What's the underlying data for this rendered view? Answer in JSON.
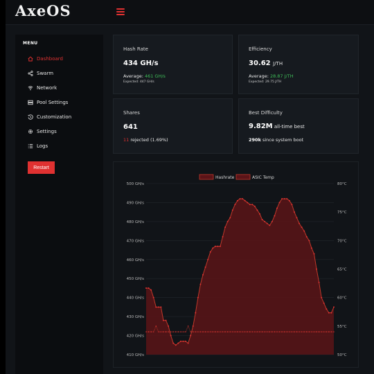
{
  "app": {
    "logo": "AxeOS"
  },
  "sidebar": {
    "menu_title": "MENU",
    "items": [
      {
        "label": "Dashboard",
        "icon": "home-icon",
        "active": true
      },
      {
        "label": "Swarm",
        "icon": "share-icon",
        "active": false
      },
      {
        "label": "Network",
        "icon": "wifi-icon",
        "active": false
      },
      {
        "label": "Pool Settings",
        "icon": "server-icon",
        "active": false
      },
      {
        "label": "Customization",
        "icon": "history-icon",
        "active": false
      },
      {
        "label": "Settings",
        "icon": "gear-icon",
        "active": false
      },
      {
        "label": "Logs",
        "icon": "list-icon",
        "active": false
      }
    ],
    "restart_label": "Restart"
  },
  "cards": {
    "hashrate": {
      "title": "Hash Rate",
      "value": "434 GH/s",
      "average_label": "Average: ",
      "average_value": "461 GH/s",
      "expected": "Expected: 447 GH/s"
    },
    "efficiency": {
      "title": "Efficiency",
      "value": "30.62",
      "unit": "J/TH",
      "average_label": "Average: ",
      "average_value": "28.87 J/TH",
      "expected": "Expected: 29.75 J/TH"
    },
    "shares": {
      "title": "Shares",
      "value": "641",
      "rejected_count": "11",
      "rejected_text": " rejected (1.69%)"
    },
    "best_difficulty": {
      "title": "Best Difficulty",
      "value": "9.82M",
      "value_suffix": " all-time best",
      "session": "290k",
      "session_suffix": " since system boot"
    }
  },
  "colors": {
    "accent": "#e03131",
    "green": "#3fbf59",
    "background": "#111418",
    "card": "#161a1f"
  },
  "chart_data": {
    "type": "line",
    "legend": [
      "Hashrate",
      "ASIC Temp"
    ],
    "legend_position": "top-center",
    "y_left": {
      "min": 410,
      "max": 500,
      "step": 10,
      "unit": "GH/s",
      "ticks": [
        "500 GH/s",
        "490 GH/s",
        "480 GH/s",
        "470 GH/s",
        "460 GH/s",
        "450 GH/s",
        "440 GH/s",
        "430 GH/s",
        "420 GH/s",
        "410 GH/s"
      ]
    },
    "y_right": {
      "min": 50,
      "max": 80,
      "step": 5,
      "unit": "°C",
      "ticks": [
        "80°C",
        "75°C",
        "70°C",
        "65°C",
        "60°C",
        "55°C",
        "50°C"
      ]
    },
    "grid": true,
    "series": [
      {
        "name": "Hashrate",
        "values": [
          445,
          445,
          444,
          440,
          435,
          435,
          435,
          428,
          428,
          425,
          420,
          416,
          415,
          416,
          417,
          417,
          417,
          416,
          420,
          425,
          432,
          440,
          447,
          452,
          456,
          460,
          464,
          466,
          467,
          467,
          467,
          472,
          477,
          480,
          482,
          486,
          489,
          491,
          492,
          492,
          491,
          490,
          489,
          489,
          488,
          486,
          484,
          481,
          480,
          479,
          478,
          480,
          483,
          487,
          490,
          492,
          492,
          492,
          491,
          489,
          485,
          482,
          479,
          477,
          475,
          472,
          470,
          466,
          463,
          455,
          448,
          440,
          437,
          434,
          432,
          432,
          435
        ]
      },
      {
        "name": "ASIC Temp",
        "values": [
          54,
          54,
          54,
          54,
          55,
          54,
          54,
          54,
          54,
          54,
          54,
          54,
          54,
          54,
          54,
          54,
          54,
          55,
          54,
          54,
          54,
          54,
          54,
          54,
          54,
          54,
          54,
          54,
          54,
          54,
          54,
          54,
          54,
          54,
          54,
          54,
          54,
          54,
          54,
          54,
          54,
          54,
          54,
          54,
          54,
          54,
          54,
          54,
          54,
          54,
          54,
          54,
          54,
          54,
          54,
          54,
          54,
          54,
          54,
          54,
          54,
          54,
          54,
          54,
          54,
          54,
          54,
          54,
          54,
          54,
          54,
          54,
          54,
          54,
          54,
          54,
          54
        ]
      }
    ]
  }
}
